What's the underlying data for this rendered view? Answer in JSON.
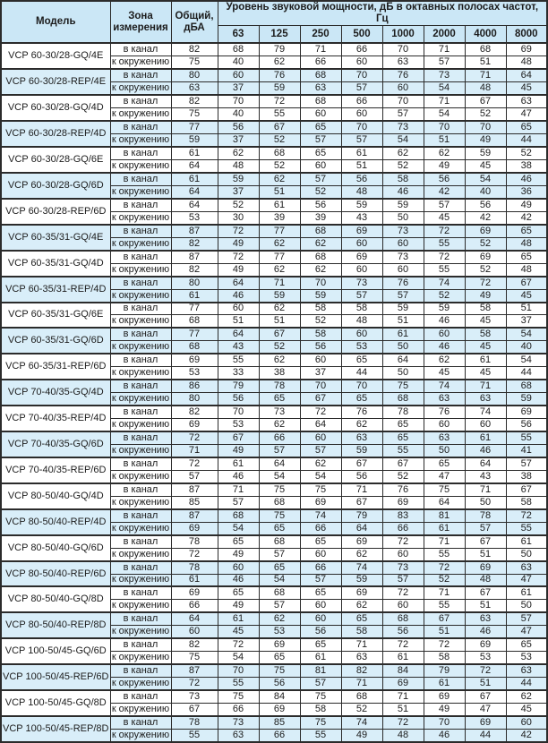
{
  "colors": {
    "header_bg": "#cbe7f6",
    "row_shaded_bg": "#d9eef9",
    "border": "#2b2b2b",
    "text": "#1c1c1c"
  },
  "table": {
    "headers": {
      "model": "Модель",
      "zone": "Зона измерения",
      "total": "Общий, дБА",
      "spl": "Уровень звуковой мощности, дБ в октавных полосах частот, Гц",
      "frequencies": [
        "63",
        "125",
        "250",
        "500",
        "1000",
        "2000",
        "4000",
        "8000"
      ]
    },
    "zone_labels": {
      "duct": "в канал",
      "ambient": "к окружению"
    },
    "groups": [
      {
        "model": "VCP 60-30/28-GQ/4E",
        "shaded": false,
        "rows": [
          {
            "zone": "в канал",
            "total": 82,
            "values": [
              68,
              79,
              71,
              66,
              70,
              71,
              68,
              69
            ]
          },
          {
            "zone": "к окружению",
            "total": 75,
            "values": [
              40,
              62,
              66,
              60,
              63,
              57,
              51,
              48
            ]
          }
        ]
      },
      {
        "model": "VCP 60-30/28-REP/4E",
        "shaded": true,
        "rows": [
          {
            "zone": "в канал",
            "total": 80,
            "values": [
              60,
              76,
              68,
              70,
              76,
              73,
              71,
              64
            ]
          },
          {
            "zone": "к окружению",
            "total": 63,
            "values": [
              37,
              59,
              63,
              57,
              60,
              54,
              48,
              45
            ]
          }
        ]
      },
      {
        "model": "VCP 60-30/28-GQ/4D",
        "shaded": false,
        "rows": [
          {
            "zone": "в канал",
            "total": 82,
            "values": [
              70,
              72,
              68,
              66,
              70,
              71,
              67,
              63
            ]
          },
          {
            "zone": "к окружению",
            "total": 75,
            "values": [
              40,
              55,
              60,
              60,
              57,
              54,
              52,
              47
            ]
          }
        ]
      },
      {
        "model": "VCP 60-30/28-REP/4D",
        "shaded": true,
        "rows": [
          {
            "zone": "в канал",
            "total": 77,
            "values": [
              56,
              67,
              65,
              70,
              73,
              70,
              70,
              65
            ]
          },
          {
            "zone": "к окружению",
            "total": 59,
            "values": [
              37,
              52,
              57,
              57,
              54,
              51,
              49,
              44
            ]
          }
        ]
      },
      {
        "model": "VCP 60-30/28-GQ/6E",
        "shaded": false,
        "rows": [
          {
            "zone": "в канал",
            "total": 61,
            "values": [
              62,
              68,
              65,
              61,
              62,
              62,
              59,
              52
            ]
          },
          {
            "zone": "к окружению",
            "total": 64,
            "values": [
              48,
              52,
              60,
              51,
              52,
              49,
              45,
              38
            ]
          }
        ]
      },
      {
        "model": "VCP 60-30/28-GQ/6D",
        "shaded": true,
        "rows": [
          {
            "zone": "в канал",
            "total": 61,
            "values": [
              59,
              62,
              57,
              56,
              58,
              56,
              54,
              46
            ]
          },
          {
            "zone": "к окружению",
            "total": 64,
            "values": [
              37,
              51,
              52,
              48,
              46,
              42,
              40,
              36
            ]
          }
        ]
      },
      {
        "model": "VCP 60-30/28-REP/6D",
        "shaded": false,
        "rows": [
          {
            "zone": "в канал",
            "total": 64,
            "values": [
              52,
              61,
              56,
              59,
              59,
              57,
              56,
              49
            ]
          },
          {
            "zone": "к окружению",
            "total": 53,
            "values": [
              30,
              39,
              39,
              43,
              50,
              45,
              42,
              42
            ]
          }
        ]
      },
      {
        "model": "VCP 60-35/31-GQ/4E",
        "shaded": true,
        "rows": [
          {
            "zone": "в канал",
            "total": 87,
            "values": [
              72,
              77,
              68,
              69,
              73,
              72,
              69,
              65
            ]
          },
          {
            "zone": "к окружению",
            "total": 82,
            "values": [
              49,
              62,
              62,
              60,
              60,
              55,
              52,
              48
            ]
          }
        ]
      },
      {
        "model": "VCP 60-35/31-GQ/4D",
        "shaded": false,
        "rows": [
          {
            "zone": "в канал",
            "total": 87,
            "values": [
              72,
              77,
              68,
              69,
              73,
              72,
              69,
              65
            ]
          },
          {
            "zone": "к окружению",
            "total": 82,
            "values": [
              49,
              62,
              62,
              60,
              60,
              55,
              52,
              48
            ]
          }
        ]
      },
      {
        "model": "VCP 60-35/31-REP/4D",
        "shaded": true,
        "rows": [
          {
            "zone": "в канал",
            "total": 80,
            "values": [
              64,
              71,
              70,
              73,
              76,
              74,
              72,
              67
            ]
          },
          {
            "zone": "к окружению",
            "total": 61,
            "values": [
              46,
              59,
              59,
              57,
              57,
              52,
              49,
              45
            ]
          }
        ]
      },
      {
        "model": "VCP 60-35/31-GQ/6E",
        "shaded": false,
        "rows": [
          {
            "zone": "в канал",
            "total": 77,
            "values": [
              60,
              62,
              58,
              58,
              59,
              59,
              58,
              51
            ]
          },
          {
            "zone": "к окружению",
            "total": 68,
            "values": [
              51,
              51,
              52,
              48,
              51,
              46,
              45,
              37
            ]
          }
        ]
      },
      {
        "model": "VCP 60-35/31-GQ/6D",
        "shaded": true,
        "rows": [
          {
            "zone": "в канал",
            "total": 77,
            "values": [
              64,
              67,
              58,
              60,
              61,
              60,
              58,
              54
            ]
          },
          {
            "zone": "к окружению",
            "total": 68,
            "values": [
              43,
              52,
              56,
              53,
              50,
              46,
              45,
              40
            ]
          }
        ]
      },
      {
        "model": "VCP 60-35/31-REP/6D",
        "shaded": false,
        "rows": [
          {
            "zone": "в канал",
            "total": 69,
            "values": [
              55,
              62,
              60,
              65,
              64,
              62,
              61,
              54
            ]
          },
          {
            "zone": "к окружению",
            "total": 53,
            "values": [
              33,
              38,
              37,
              44,
              50,
              45,
              45,
              44
            ]
          }
        ]
      },
      {
        "model": "VCP 70-40/35-GQ/4D",
        "shaded": true,
        "rows": [
          {
            "zone": "в канал",
            "total": 86,
            "values": [
              79,
              78,
              70,
              70,
              75,
              74,
              71,
              68
            ]
          },
          {
            "zone": "к окружению",
            "total": 80,
            "values": [
              56,
              65,
              67,
              65,
              68,
              63,
              63,
              59
            ]
          }
        ]
      },
      {
        "model": "VCP 70-40/35-REP/4D",
        "shaded": false,
        "rows": [
          {
            "zone": "в канал",
            "total": 82,
            "values": [
              70,
              73,
              72,
              76,
              78,
              76,
              74,
              69
            ]
          },
          {
            "zone": "к окружению",
            "total": 69,
            "values": [
              53,
              62,
              64,
              62,
              65,
              60,
              60,
              56
            ]
          }
        ]
      },
      {
        "model": "VCP 70-40/35-GQ/6D",
        "shaded": true,
        "rows": [
          {
            "zone": "в канал",
            "total": 72,
            "values": [
              67,
              66,
              60,
              63,
              65,
              63,
              61,
              55
            ]
          },
          {
            "zone": "к окружению",
            "total": 71,
            "values": [
              49,
              57,
              57,
              59,
              55,
              50,
              46,
              41
            ]
          }
        ]
      },
      {
        "model": "VCP 70-40/35-REP/6D",
        "shaded": false,
        "rows": [
          {
            "zone": "в канал",
            "total": 72,
            "values": [
              61,
              64,
              62,
              67,
              67,
              65,
              64,
              57
            ]
          },
          {
            "zone": "к окружению",
            "total": 57,
            "values": [
              46,
              54,
              54,
              56,
              52,
              47,
              43,
              38
            ]
          }
        ]
      },
      {
        "model": "VCP 80-50/40-GQ/4D",
        "shaded": false,
        "rows": [
          {
            "zone": "в канал",
            "total": 87,
            "values": [
              71,
              75,
              75,
              71,
              76,
              75,
              71,
              67
            ]
          },
          {
            "zone": "к окружению",
            "total": 85,
            "values": [
              57,
              68,
              69,
              67,
              69,
              64,
              50,
              58
            ]
          }
        ]
      },
      {
        "model": "VCP 80-50/40-REP/4D",
        "shaded": true,
        "rows": [
          {
            "zone": "в канал",
            "total": 87,
            "values": [
              68,
              75,
              74,
              79,
              83,
              81,
              78,
              72
            ]
          },
          {
            "zone": "к окружению",
            "total": 69,
            "values": [
              54,
              65,
              66,
              64,
              66,
              61,
              57,
              55
            ]
          }
        ]
      },
      {
        "model": "VCP 80-50/40-GQ/6D",
        "shaded": false,
        "rows": [
          {
            "zone": "в канал",
            "total": 78,
            "values": [
              65,
              68,
              65,
              69,
              72,
              71,
              67,
              61
            ]
          },
          {
            "zone": "к окружению",
            "total": 72,
            "values": [
              49,
              57,
              60,
              62,
              60,
              55,
              51,
              50
            ]
          }
        ]
      },
      {
        "model": "VCP 80-50/40-REP/6D",
        "shaded": true,
        "rows": [
          {
            "zone": "в канал",
            "total": 78,
            "values": [
              60,
              65,
              66,
              74,
              73,
              72,
              69,
              63
            ]
          },
          {
            "zone": "к окружению",
            "total": 61,
            "values": [
              46,
              54,
              57,
              59,
              57,
              52,
              48,
              47
            ]
          }
        ]
      },
      {
        "model": "VCP 80-50/40-GQ/8D",
        "shaded": false,
        "rows": [
          {
            "zone": "в канал",
            "total": 69,
            "values": [
              65,
              68,
              65,
              69,
              72,
              71,
              67,
              61
            ]
          },
          {
            "zone": "к окружению",
            "total": 66,
            "values": [
              49,
              57,
              60,
              62,
              60,
              55,
              51,
              50
            ]
          }
        ]
      },
      {
        "model": "VCP 80-50/40-REP/8D",
        "shaded": true,
        "rows": [
          {
            "zone": "в канал",
            "total": 64,
            "values": [
              61,
              62,
              60,
              65,
              68,
              67,
              63,
              57
            ]
          },
          {
            "zone": "к окружению",
            "total": 60,
            "values": [
              45,
              53,
              56,
              58,
              56,
              51,
              46,
              47
            ]
          }
        ]
      },
      {
        "model": "VCP 100-50/45-GQ/6D",
        "shaded": false,
        "rows": [
          {
            "zone": "в канал",
            "total": 82,
            "values": [
              72,
              69,
              65,
              71,
              72,
              72,
              69,
              65
            ]
          },
          {
            "zone": "к окружению",
            "total": 75,
            "values": [
              54,
              65,
              61,
              63,
              61,
              58,
              53,
              53
            ]
          }
        ]
      },
      {
        "model": "VCP 100-50/45-REP/6D",
        "shaded": true,
        "rows": [
          {
            "zone": "в канал",
            "total": 87,
            "values": [
              70,
              75,
              81,
              82,
              84,
              79,
              72,
              63
            ]
          },
          {
            "zone": "к окружению",
            "total": 72,
            "values": [
              55,
              56,
              57,
              71,
              69,
              61,
              51,
              44
            ]
          }
        ]
      },
      {
        "model": "VCP 100-50/45-GQ/8D",
        "shaded": false,
        "rows": [
          {
            "zone": "в канал",
            "total": 73,
            "values": [
              75,
              84,
              75,
              68,
              71,
              69,
              67,
              62
            ]
          },
          {
            "zone": "к окружению",
            "total": 67,
            "values": [
              66,
              69,
              58,
              52,
              51,
              49,
              47,
              45
            ]
          }
        ]
      },
      {
        "model": "VCP 100-50/45-REP/8D",
        "shaded": true,
        "rows": [
          {
            "zone": "в канал",
            "total": 78,
            "values": [
              73,
              85,
              75,
              74,
              72,
              70,
              69,
              60
            ]
          },
          {
            "zone": "к окружению",
            "total": 55,
            "values": [
              63,
              66,
              55,
              49,
              48,
              46,
              44,
              42
            ]
          }
        ]
      }
    ]
  }
}
